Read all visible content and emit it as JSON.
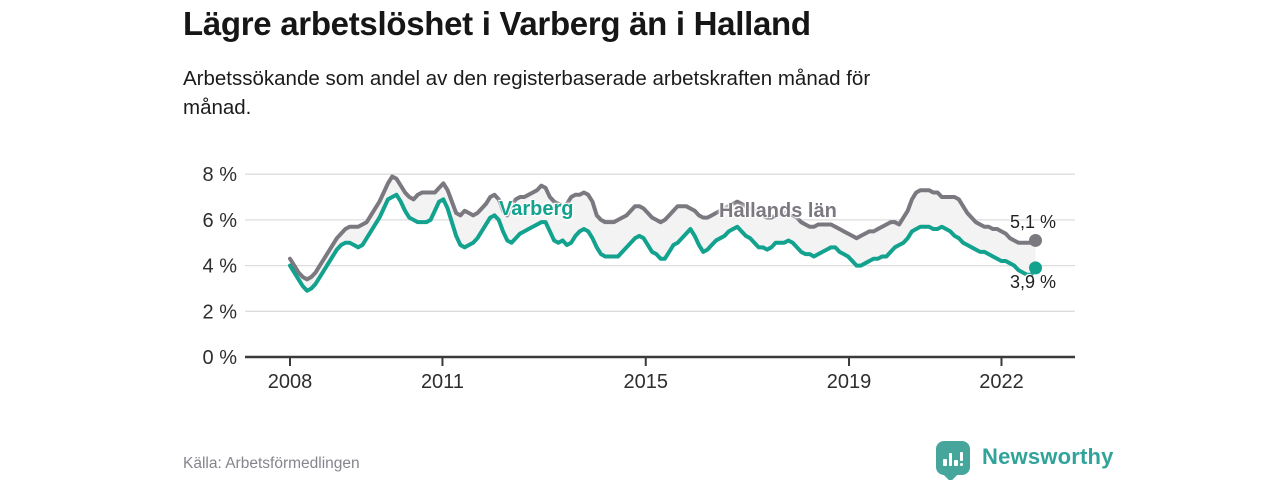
{
  "header": {
    "title": "Lägre arbetslöshet i Varberg än i Halland",
    "subtitle": "Arbetssökande som andel av den registerbaserade arbetskraften månad för\nmånad."
  },
  "footer": {
    "source": "Källa: Arbetsförmedlingen",
    "brand": "Newsworthy"
  },
  "colors": {
    "varberg_teal": "#12a28e",
    "halland_gray": "#7b7880",
    "logo_teal": "#31a39a",
    "fill_between": "#f3f3f4"
  },
  "chart_data": {
    "type": "line",
    "title": "Lägre arbetslöshet i Varberg än i Halland",
    "subtitle": "Arbetssökande som andel av den registerbaserade arbetskraften månad för månad.",
    "source": "Källa: Arbetsförmedlingen",
    "x_unit": "month",
    "x_start": "2008-01",
    "x_end": "2022-08",
    "grid": true,
    "legend": "inline-labels",
    "x_axis": {
      "ticks": [
        {
          "v": 2008,
          "label": "2008"
        },
        {
          "v": 2011,
          "label": "2011"
        },
        {
          "v": 2015,
          "label": "2015"
        },
        {
          "v": 2019,
          "label": "2019"
        },
        {
          "v": 2022,
          "label": "2022"
        }
      ]
    },
    "y_axis": {
      "unit": "%",
      "range": [
        0,
        8.6
      ],
      "ticks": [
        {
          "v": 0,
          "label": "0 %"
        },
        {
          "v": 2,
          "label": "2 %"
        },
        {
          "v": 4,
          "label": "4 %"
        },
        {
          "v": 6,
          "label": "6 %"
        },
        {
          "v": 8,
          "label": "8 %"
        }
      ]
    },
    "series": [
      {
        "name": "Hallands län",
        "color": "#7b7880",
        "end_label": "5,1 %",
        "end_value": 5.1,
        "values": [
          4.3,
          4.0,
          3.7,
          3.5,
          3.4,
          3.5,
          3.7,
          4.0,
          4.3,
          4.6,
          4.9,
          5.2,
          5.4,
          5.6,
          5.7,
          5.7,
          5.7,
          5.8,
          5.9,
          6.2,
          6.5,
          6.8,
          7.2,
          7.6,
          7.9,
          7.8,
          7.5,
          7.2,
          7.0,
          6.9,
          7.1,
          7.2,
          7.2,
          7.2,
          7.2,
          7.4,
          7.6,
          7.3,
          6.8,
          6.3,
          6.2,
          6.4,
          6.3,
          6.2,
          6.3,
          6.5,
          6.7,
          7.0,
          7.1,
          6.9,
          6.4,
          6.2,
          6.6,
          6.9,
          7.0,
          7.0,
          7.1,
          7.2,
          7.3,
          7.5,
          7.4,
          7.0,
          6.8,
          6.7,
          6.6,
          6.7,
          7.0,
          7.1,
          7.1,
          7.2,
          7.1,
          6.8,
          6.2,
          6.0,
          5.9,
          5.9,
          5.9,
          6.0,
          6.1,
          6.2,
          6.4,
          6.6,
          6.6,
          6.5,
          6.3,
          6.1,
          6.0,
          5.9,
          6.0,
          6.2,
          6.4,
          6.6,
          6.6,
          6.6,
          6.5,
          6.4,
          6.2,
          6.1,
          6.1,
          6.2,
          6.3,
          6.4,
          6.5,
          6.6,
          6.7,
          6.8,
          6.7,
          6.6,
          6.5,
          6.4,
          6.3,
          6.2,
          6.1,
          6.1,
          6.2,
          6.3,
          6.3,
          6.3,
          6.2,
          6.1,
          5.9,
          5.8,
          5.7,
          5.7,
          5.8,
          5.8,
          5.8,
          5.8,
          5.7,
          5.6,
          5.5,
          5.4,
          5.3,
          5.2,
          5.3,
          5.4,
          5.5,
          5.5,
          5.6,
          5.7,
          5.8,
          5.9,
          5.9,
          5.8,
          6.1,
          6.4,
          6.9,
          7.2,
          7.3,
          7.3,
          7.3,
          7.2,
          7.2,
          7.0,
          7.0,
          7.0,
          7.0,
          6.9,
          6.6,
          6.3,
          6.1,
          5.9,
          5.8,
          5.7,
          5.7,
          5.6,
          5.6,
          5.5,
          5.4,
          5.2,
          5.1,
          5.0,
          5.0,
          5.0,
          5.0,
          5.1
        ]
      },
      {
        "name": "Varberg",
        "color": "#12a28e",
        "end_label": "3,9 %",
        "end_value": 3.9,
        "values": [
          4.0,
          3.7,
          3.4,
          3.1,
          2.9,
          3.0,
          3.2,
          3.5,
          3.8,
          4.1,
          4.4,
          4.7,
          4.9,
          5.0,
          5.0,
          4.9,
          4.8,
          4.9,
          5.2,
          5.5,
          5.8,
          6.1,
          6.5,
          6.9,
          7.0,
          7.1,
          6.8,
          6.4,
          6.1,
          6.0,
          5.9,
          5.9,
          5.9,
          6.0,
          6.4,
          6.8,
          6.9,
          6.5,
          5.9,
          5.3,
          4.9,
          4.8,
          4.9,
          5.0,
          5.2,
          5.5,
          5.8,
          6.1,
          6.2,
          6.0,
          5.5,
          5.1,
          5.0,
          5.2,
          5.4,
          5.5,
          5.6,
          5.7,
          5.8,
          5.9,
          5.9,
          5.5,
          5.1,
          5.0,
          5.1,
          4.9,
          5.0,
          5.3,
          5.5,
          5.6,
          5.5,
          5.2,
          4.8,
          4.5,
          4.4,
          4.4,
          4.4,
          4.4,
          4.6,
          4.8,
          5.0,
          5.2,
          5.3,
          5.2,
          4.9,
          4.6,
          4.5,
          4.3,
          4.3,
          4.6,
          4.9,
          5.0,
          5.2,
          5.4,
          5.6,
          5.3,
          4.9,
          4.6,
          4.7,
          4.9,
          5.1,
          5.2,
          5.3,
          5.5,
          5.6,
          5.7,
          5.5,
          5.3,
          5.2,
          5.0,
          4.8,
          4.8,
          4.7,
          4.8,
          5.0,
          5.0,
          5.0,
          5.1,
          5.0,
          4.8,
          4.6,
          4.5,
          4.5,
          4.4,
          4.5,
          4.6,
          4.7,
          4.8,
          4.8,
          4.6,
          4.5,
          4.4,
          4.2,
          4.0,
          4.0,
          4.1,
          4.2,
          4.3,
          4.3,
          4.4,
          4.4,
          4.6,
          4.8,
          4.9,
          5.0,
          5.2,
          5.5,
          5.6,
          5.7,
          5.7,
          5.7,
          5.6,
          5.6,
          5.7,
          5.6,
          5.5,
          5.3,
          5.2,
          5.0,
          4.9,
          4.8,
          4.7,
          4.6,
          4.6,
          4.5,
          4.4,
          4.3,
          4.2,
          4.2,
          4.1,
          4.0,
          3.8,
          3.7,
          3.6,
          3.6,
          3.9
        ]
      }
    ]
  }
}
